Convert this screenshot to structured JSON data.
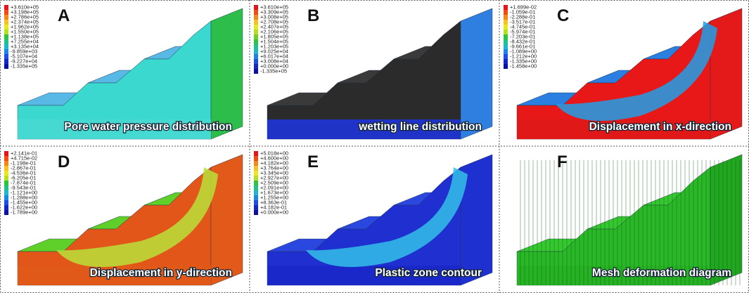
{
  "panels": [
    {
      "letter": "A",
      "caption": "Pore water pressure distribution",
      "legend": [
        "+3.610e+05",
        "+3.198e+05",
        "+2.786e+05",
        "+2.374e+05",
        "+1.962e+05",
        "+1.550e+05",
        "+1.138e+05",
        "+7.255e+04",
        "+3.135e+04",
        "-9.859e+03",
        "-5.107e+04",
        "-9.227e+04",
        "-1.335e+05"
      ]
    },
    {
      "letter": "B",
      "caption": "wetting line distribution",
      "legend": [
        "+3.610e+05",
        "+3.309e+05",
        "+3.008e+05",
        "+2.708e+05",
        "+2.407e+05",
        "+2.106e+05",
        "+1.805e+05",
        "+1.504e+05",
        "+1.203e+05",
        "+9.025e+04",
        "+6.017e+04",
        "+3.008e+04",
        "+0.000e+00",
        "-1.335e+05"
      ]
    },
    {
      "letter": "C",
      "caption": "Displacement in x-direction",
      "legend": [
        "+1.699e-02",
        "-1.059e-01",
        "-2.288e-01",
        "-3.517e-01",
        "-4.745e-01",
        "-5.974e-01",
        "-7.203e-01",
        "-8.432e-01",
        "-9.661e-01",
        "-1.089e+00",
        "-1.212e+00",
        "-1.335e+00",
        "-1.458e+00"
      ]
    },
    {
      "letter": "D",
      "caption": "Displacement in y-direction",
      "legend": [
        "+2.141e-01",
        "+4.715e-02",
        "-1.198e-01",
        "-2.867e-01",
        "-4.536e-01",
        "-6.205e-01",
        "-7.874e-01",
        "-9.543e-01",
        "-1.121e+00",
        "-1.288e+00",
        "-1.455e+00",
        "-1.622e+00",
        "-1.789e+00"
      ]
    },
    {
      "letter": "E",
      "caption": "Plastic zone contour",
      "legend": [
        "+5.018e+00",
        "+4.600e+00",
        "+4.182e+00",
        "+3.764e+00",
        "+3.345e+00",
        "+2.927e+00",
        "+2.509e+00",
        "+2.091e+00",
        "+1.673e+00",
        "+1.255e+00",
        "+8.363e-01",
        "+4.182e-01",
        "+0.000e+00"
      ]
    },
    {
      "letter": "F",
      "caption": "Mesh deformation diagram",
      "legend": []
    }
  ]
}
